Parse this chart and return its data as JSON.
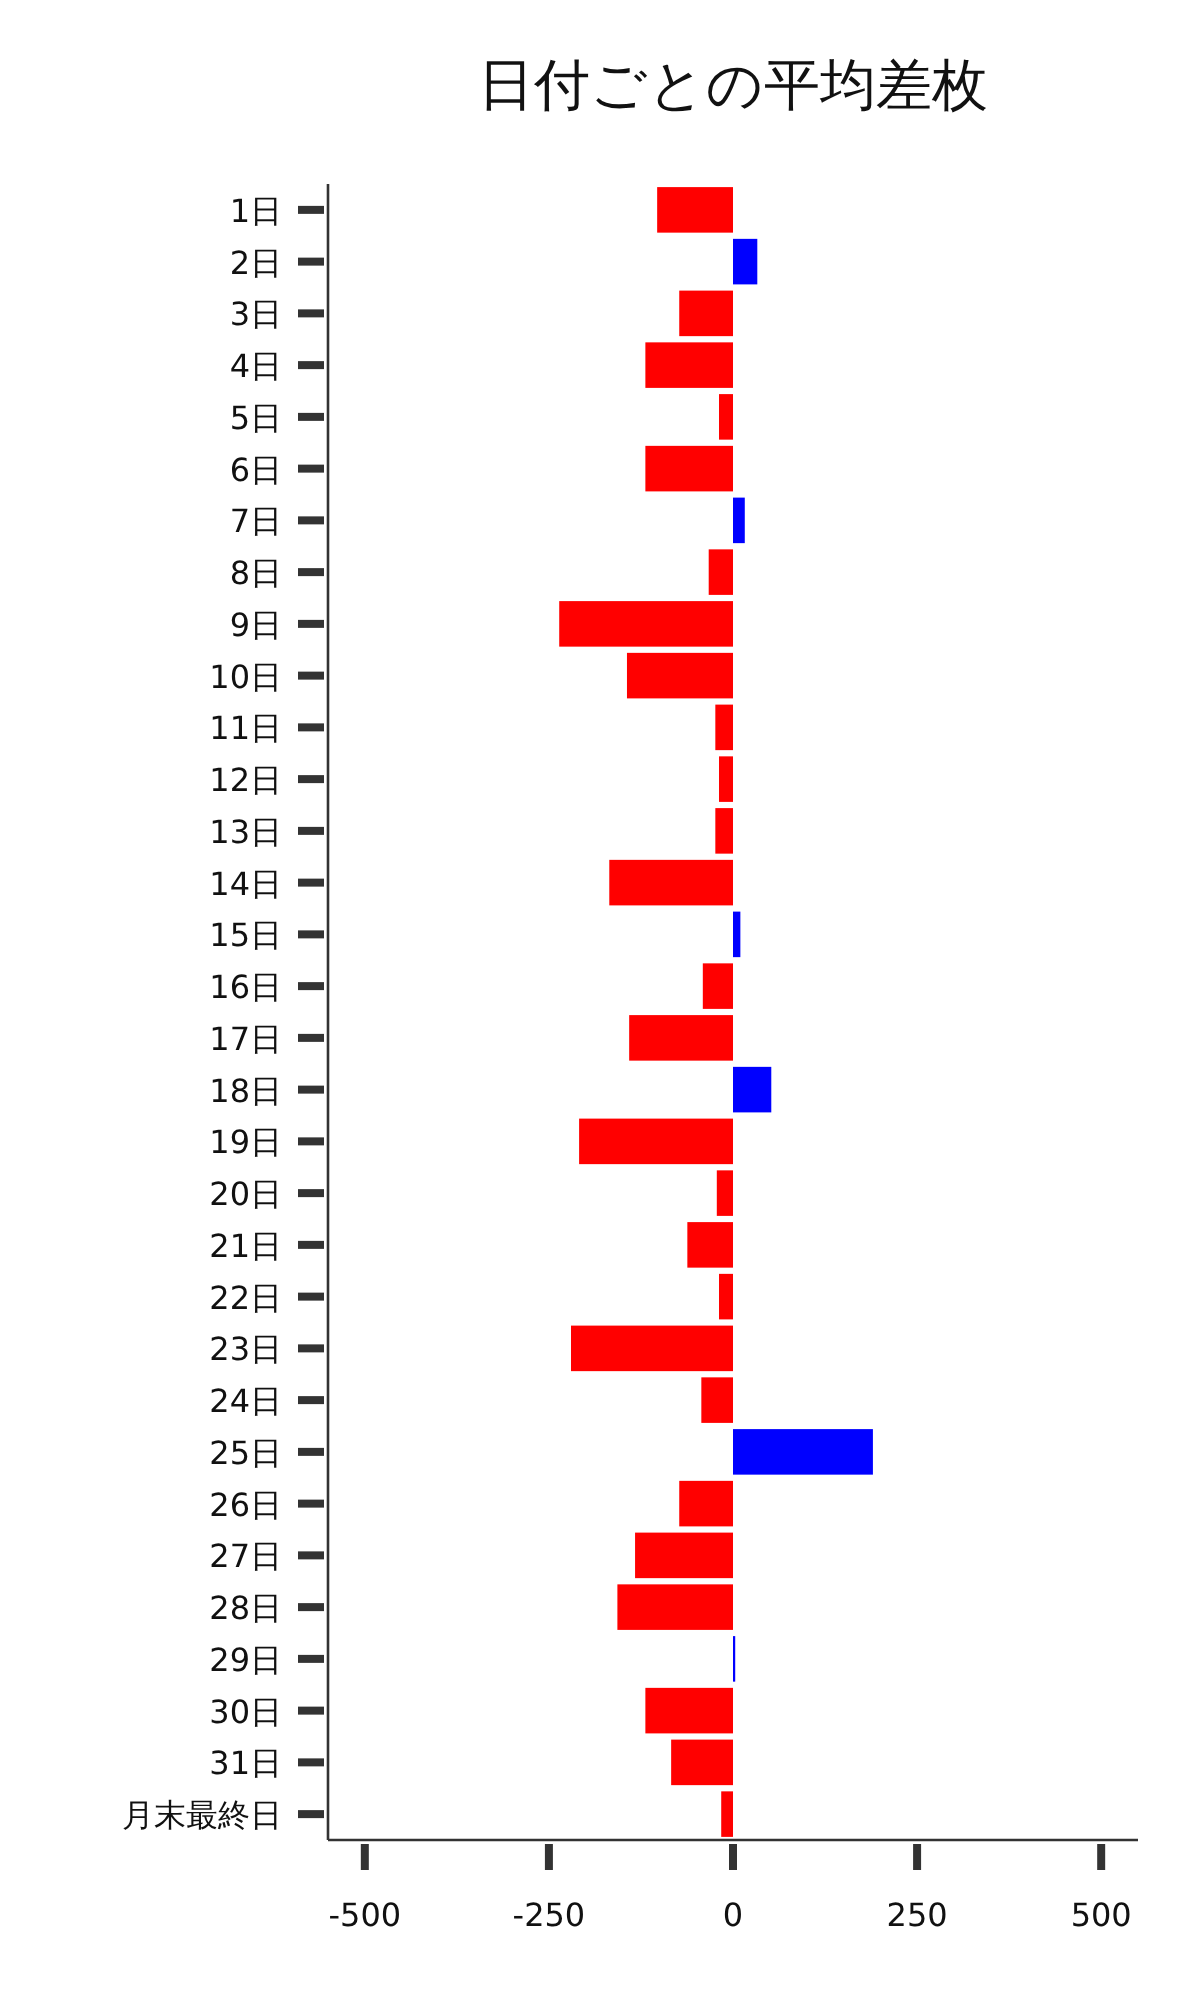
{
  "chart_data": {
    "type": "bar",
    "orientation": "horizontal",
    "title": "日付ごとの平均差枚",
    "categories": [
      "1日",
      "2日",
      "3日",
      "4日",
      "5日",
      "6日",
      "7日",
      "8日",
      "9日",
      "10日",
      "11日",
      "12日",
      "13日",
      "14日",
      "15日",
      "16日",
      "17日",
      "18日",
      "19日",
      "20日",
      "21日",
      "22日",
      "23日",
      "24日",
      "25日",
      "26日",
      "27日",
      "28日",
      "29日",
      "30日",
      "31日",
      "月末最終日"
    ],
    "values": [
      -103,
      33,
      -73,
      -119,
      -19,
      -119,
      16,
      -33,
      -236,
      -144,
      -24,
      -19,
      -24,
      -168,
      10,
      -41,
      -141,
      52,
      -209,
      -22,
      -62,
      -19,
      -220,
      -43,
      190,
      -73,
      -133,
      -157,
      3,
      -119,
      -84,
      -16
    ],
    "colors": [
      "#ff0000",
      "#0000ff",
      "#ff0000",
      "#ff0000",
      "#ff0000",
      "#ff0000",
      "#0000ff",
      "#ff0000",
      "#ff0000",
      "#ff0000",
      "#ff0000",
      "#ff0000",
      "#ff0000",
      "#ff0000",
      "#0000ff",
      "#ff0000",
      "#ff0000",
      "#0000ff",
      "#ff0000",
      "#ff0000",
      "#ff0000",
      "#ff0000",
      "#ff0000",
      "#ff0000",
      "#0000ff",
      "#ff0000",
      "#ff0000",
      "#ff0000",
      "#0000ff",
      "#ff0000",
      "#ff0000",
      "#ff0000"
    ],
    "xlim": [
      -550,
      550
    ],
    "xticks": [
      {
        "value": -500,
        "label": "-500"
      },
      {
        "value": -250,
        "label": "-250"
      },
      0,
      250,
      500
    ]
  }
}
